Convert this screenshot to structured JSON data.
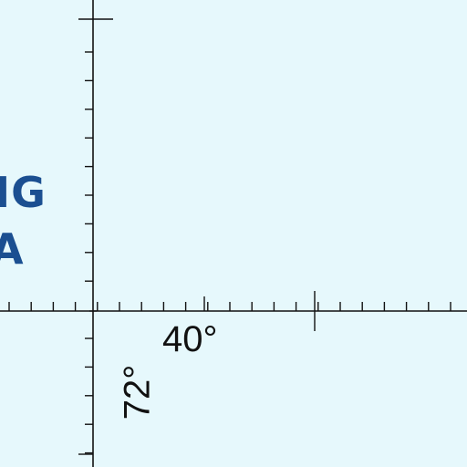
{
  "map": {
    "background_color": "#e6f8fc",
    "graticule_color": "#111111",
    "label_color": "#1b4f91",
    "water_label": {
      "line1": "IG",
      "line2": "A"
    },
    "graticule_labels": {
      "longitude": "40°",
      "latitude": "72°"
    }
  }
}
